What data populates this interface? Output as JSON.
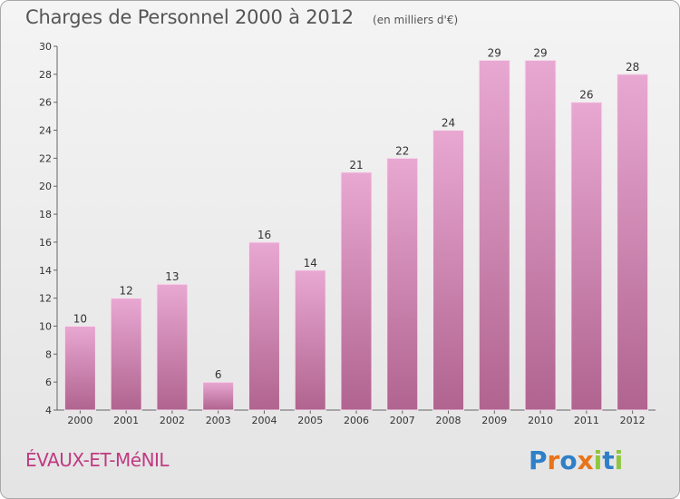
{
  "header": {
    "title": "Charges de Personnel 2000 à 2012",
    "subtitle": "(en milliers d'€)"
  },
  "commune": "ÉVAUX-ET-MéNIL",
  "logo": {
    "text": "Proxiti",
    "letters": [
      {
        "ch": "P",
        "color": "#2f7fc8"
      },
      {
        "ch": "r",
        "color": "#e8731a"
      },
      {
        "ch": "o",
        "color": "#2f7fc8"
      },
      {
        "ch": "x",
        "color": "#e8731a"
      },
      {
        "ch": "i",
        "color": "#8fc63e"
      },
      {
        "ch": "t",
        "color": "#2f7fc8"
      },
      {
        "ch": "i",
        "color": "#8fc63e"
      }
    ]
  },
  "colors": {
    "bar_top": "#e8a8d2",
    "bar_bottom": "#b0648f",
    "accent": "#c03a82"
  },
  "chart_data": {
    "type": "bar",
    "title": "Charges de Personnel 2000 à 2012",
    "subtitle": "(en milliers d'€)",
    "categories": [
      "2000",
      "2001",
      "2002",
      "2003",
      "2004",
      "2005",
      "2006",
      "2007",
      "2008",
      "2009",
      "2010",
      "2011",
      "2012"
    ],
    "values": [
      10,
      12,
      13,
      6,
      16,
      14,
      21,
      22,
      24,
      29,
      29,
      26,
      28
    ],
    "ylim": [
      4,
      30
    ],
    "yticks": [
      4,
      6,
      8,
      10,
      12,
      14,
      16,
      18,
      20,
      22,
      24,
      26,
      28,
      30
    ],
    "xlabel": "",
    "ylabel": "",
    "grid": false
  }
}
